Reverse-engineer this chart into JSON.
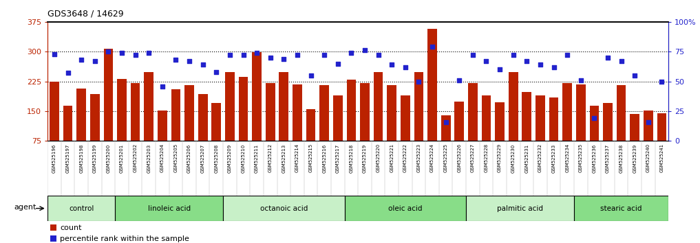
{
  "title": "GDS3648 / 14629",
  "samples": [
    "GSM525196",
    "GSM525197",
    "GSM525198",
    "GSM525199",
    "GSM525200",
    "GSM525201",
    "GSM525202",
    "GSM525203",
    "GSM525204",
    "GSM525205",
    "GSM525206",
    "GSM525207",
    "GSM525208",
    "GSM525209",
    "GSM525210",
    "GSM525211",
    "GSM525212",
    "GSM525213",
    "GSM525214",
    "GSM525215",
    "GSM525216",
    "GSM525217",
    "GSM525218",
    "GSM525219",
    "GSM525220",
    "GSM525221",
    "GSM525222",
    "GSM525223",
    "GSM525224",
    "GSM525225",
    "GSM525226",
    "GSM525227",
    "GSM525228",
    "GSM525229",
    "GSM525230",
    "GSM525231",
    "GSM525232",
    "GSM525233",
    "GSM525234",
    "GSM525235",
    "GSM525236",
    "GSM525237",
    "GSM525238",
    "GSM525239",
    "GSM525240",
    "GSM525241"
  ],
  "counts": [
    225,
    163,
    207,
    193,
    308,
    232,
    220,
    248,
    152,
    205,
    215,
    193,
    170,
    248,
    237,
    298,
    220,
    248,
    218,
    155,
    215,
    190,
    230,
    220,
    248,
    215,
    190,
    248,
    358,
    140,
    175,
    220,
    190,
    172,
    248,
    198,
    190,
    185,
    220,
    218,
    163,
    170,
    215,
    143,
    152,
    145
  ],
  "percentiles": [
    73,
    57,
    68,
    67,
    75,
    74,
    72,
    74,
    46,
    68,
    67,
    64,
    58,
    72,
    72,
    74,
    70,
    69,
    72,
    55,
    72,
    65,
    74,
    76,
    72,
    64,
    62,
    50,
    79,
    16,
    51,
    72,
    67,
    60,
    72,
    67,
    64,
    62,
    72,
    51,
    19,
    70,
    67,
    55,
    16,
    50
  ],
  "groups": [
    {
      "label": "control",
      "start": 0,
      "end": 4
    },
    {
      "label": "linoleic acid",
      "start": 5,
      "end": 12
    },
    {
      "label": "octanoic acid",
      "start": 13,
      "end": 21
    },
    {
      "label": "oleic acid",
      "start": 22,
      "end": 30
    },
    {
      "label": "palmitic acid",
      "start": 31,
      "end": 38
    },
    {
      "label": "stearic acid",
      "start": 39,
      "end": 45
    }
  ],
  "bar_color": "#BB2200",
  "dot_color": "#2222CC",
  "left_ylim": [
    75,
    375
  ],
  "right_ylim": [
    0,
    100
  ],
  "left_yticks": [
    75,
    150,
    225,
    300,
    375
  ],
  "right_yticks": [
    0,
    25,
    50,
    75,
    100
  ],
  "right_yticklabels": [
    "0",
    "25",
    "50",
    "75",
    "100%"
  ],
  "grid_lines": [
    150,
    225,
    300
  ],
  "group_colors": [
    "#c8f0c8",
    "#88dd88",
    "#c8f0c8",
    "#88dd88",
    "#c8f0c8",
    "#88dd88"
  ],
  "bg_color": "#ffffff",
  "xticklabel_bg": "#d8d8d8"
}
